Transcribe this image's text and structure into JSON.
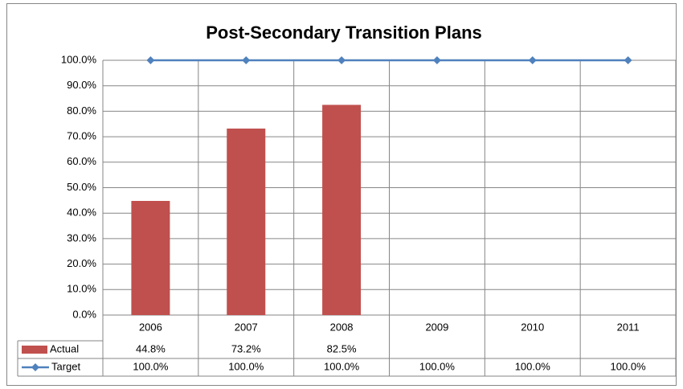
{
  "chart_data": {
    "type": "bar_line",
    "title": "Post-Secondary Transition Plans",
    "categories": [
      "2006",
      "2007",
      "2008",
      "2009",
      "2010",
      "2011"
    ],
    "series": [
      {
        "name": "Actual",
        "type": "bar",
        "color": "#c0504d",
        "values": [
          44.8,
          73.2,
          82.5,
          null,
          null,
          null
        ],
        "value_labels": [
          "44.8%",
          "73.2%",
          "82.5%",
          null,
          null,
          null
        ]
      },
      {
        "name": "Target",
        "type": "line",
        "color": "#4f81bd",
        "values": [
          100,
          100,
          100,
          100,
          100,
          100
        ],
        "value_labels": [
          "100.0%",
          "100.0%",
          "100.0%",
          "100.0%",
          "100.0%",
          "100.0%"
        ]
      }
    ],
    "ylim": [
      0,
      100
    ],
    "yticks": [
      {
        "value": 0,
        "label": "0.0%"
      },
      {
        "value": 10,
        "label": "10.0%"
      },
      {
        "value": 20,
        "label": "20.0%"
      },
      {
        "value": 30,
        "label": "30.0%"
      },
      {
        "value": 40,
        "label": "40.0%"
      },
      {
        "value": 50,
        "label": "50.0%"
      },
      {
        "value": 60,
        "label": "60.0%"
      },
      {
        "value": 70,
        "label": "70.0%"
      },
      {
        "value": 80,
        "label": "80.0%"
      },
      {
        "value": 90,
        "label": "90.0%"
      },
      {
        "value": 100,
        "label": "100.0%"
      }
    ],
    "grid": true
  }
}
